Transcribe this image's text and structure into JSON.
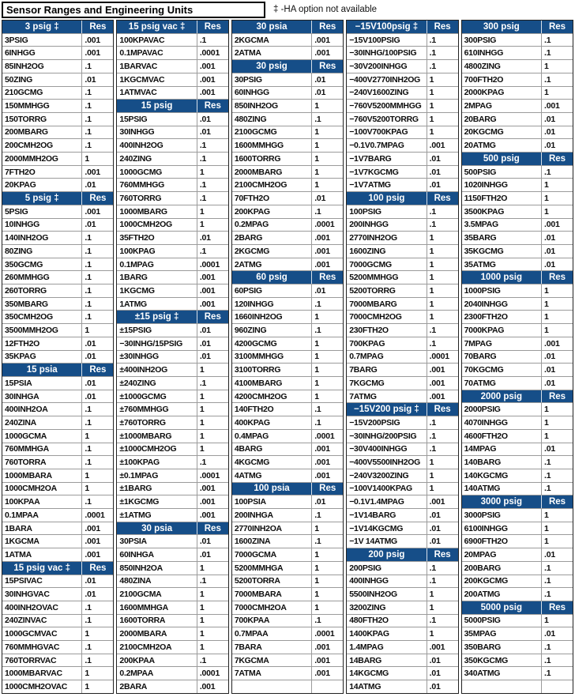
{
  "title": "Sensor Ranges and Engineering Units",
  "note": "‡ -HA option not available",
  "res_header": "Res",
  "colors": {
    "header_bg": "#164e88",
    "header_text": "#ffffff",
    "body_text": "#0d0d0d",
    "grid_line": "#9b9b9b",
    "outer_border": "#222222"
  },
  "columns": [
    {
      "name": "column-1",
      "rows": [
        {
          "h": "3 psig ‡"
        },
        {
          "r": "3PSIG",
          "v": ".001"
        },
        {
          "r": "6INHGG",
          "v": ".001"
        },
        {
          "r": "85INH2OG",
          "v": ".1"
        },
        {
          "r": "50ZING",
          "v": ".01"
        },
        {
          "r": "210GCMG",
          "v": ".1"
        },
        {
          "r": "150MMHGG",
          "v": ".1"
        },
        {
          "r": "150TORRG",
          "v": ".1"
        },
        {
          "r": "200MBARG",
          "v": ".1"
        },
        {
          "r": "200CMH2OG",
          "v": ".1"
        },
        {
          "r": "2000MMH2OG",
          "v": "1"
        },
        {
          "r": "7FTH2O",
          "v": ".001"
        },
        {
          "r": "20KPAG",
          "v": ".01"
        },
        {
          "h": "5 psig ‡"
        },
        {
          "r": "5PSIG",
          "v": ".001"
        },
        {
          "r": "10INHGG",
          "v": ".01"
        },
        {
          "r": "140INH2OG",
          "v": ".1"
        },
        {
          "r": "80ZING",
          "v": ".1"
        },
        {
          "r": "350GCMG",
          "v": ".1"
        },
        {
          "r": "260MMHGG",
          "v": ".1"
        },
        {
          "r": "260TORRG",
          "v": ".1"
        },
        {
          "r": "350MBARG",
          "v": ".1"
        },
        {
          "r": "350CMH2OG",
          "v": ".1"
        },
        {
          "r": "3500MMH2OG",
          "v": "1"
        },
        {
          "r": "12FTH2O",
          "v": ".01"
        },
        {
          "r": "35KPAG",
          "v": ".01"
        },
        {
          "h": "15 psia"
        },
        {
          "r": "15PSIA",
          "v": ".01"
        },
        {
          "r": "30INHGA",
          "v": ".01"
        },
        {
          "r": "400INH2OA",
          "v": ".1"
        },
        {
          "r": "240ZINA",
          "v": ".1"
        },
        {
          "r": "1000GCMA",
          "v": "1"
        },
        {
          "r": "760MMHGA",
          "v": ".1"
        },
        {
          "r": "760TORRA",
          "v": ".1"
        },
        {
          "r": "1000MBARA",
          "v": "1"
        },
        {
          "r": "1000CMH2OA",
          "v": "1"
        },
        {
          "r": "100KPAA",
          "v": ".1"
        },
        {
          "r": "0.1MPAA",
          "v": ".0001"
        },
        {
          "r": "1BARA",
          "v": ".001"
        },
        {
          "r": "1KGCMA",
          "v": ".001"
        },
        {
          "r": "1ATMA",
          "v": ".001"
        },
        {
          "h": "15 psig vac ‡"
        },
        {
          "r": "15PSIVAC",
          "v": ".01"
        },
        {
          "r": "30INHGVAC",
          "v": ".01"
        },
        {
          "r": "400INH2OVAC",
          "v": ".1"
        },
        {
          "r": "240ZINVAC",
          "v": ".1"
        },
        {
          "r": "1000GCMVAC",
          "v": "1"
        },
        {
          "r": "760MMHGVAC",
          "v": ".1"
        },
        {
          "r": "760TORRVAC",
          "v": ".1"
        },
        {
          "r": "1000MBARVAC",
          "v": "1"
        },
        {
          "r": "1000CMH2OVAC",
          "v": "1"
        }
      ]
    },
    {
      "name": "column-2",
      "rows": [
        {
          "h": "15 psig vac ‡"
        },
        {
          "r": "100KPAVAC",
          "v": ".1"
        },
        {
          "r": "0.1MPAVAC",
          "v": ".0001"
        },
        {
          "r": "1BARVAC",
          "v": ".001"
        },
        {
          "r": "1KGCMVAC",
          "v": ".001"
        },
        {
          "r": "1ATMVAC",
          "v": ".001"
        },
        {
          "h": "15 psig"
        },
        {
          "r": "15PSIG",
          "v": ".01"
        },
        {
          "r": "30INHGG",
          "v": ".01"
        },
        {
          "r": "400INH2OG",
          "v": ".1"
        },
        {
          "r": "240ZING",
          "v": ".1"
        },
        {
          "r": "1000GCMG",
          "v": "1"
        },
        {
          "r": "760MMHGG",
          "v": ".1"
        },
        {
          "r": "760TORRG",
          "v": ".1"
        },
        {
          "r": "1000MBARG",
          "v": "1"
        },
        {
          "r": "1000CMH2OG",
          "v": "1"
        },
        {
          "r": "35FTH2O",
          "v": ".01"
        },
        {
          "r": "100KPAG",
          "v": ".1"
        },
        {
          "r": "0.1MPAG",
          "v": ".0001"
        },
        {
          "r": "1BARG",
          "v": ".001"
        },
        {
          "r": "1KGCMG",
          "v": ".001"
        },
        {
          "r": "1ATMG",
          "v": ".001"
        },
        {
          "h": "±15 psig ‡"
        },
        {
          "r": "±15PSIG",
          "v": ".01"
        },
        {
          "r": "−30INHG/15PSIG",
          "v": ".01"
        },
        {
          "r": "±30INHGG",
          "v": ".01"
        },
        {
          "r": "±400INH2OG",
          "v": "1"
        },
        {
          "r": "±240ZING",
          "v": ".1"
        },
        {
          "r": "±1000GCMG",
          "v": "1"
        },
        {
          "r": "±760MMHGG",
          "v": "1"
        },
        {
          "r": "±760TORRG",
          "v": "1"
        },
        {
          "r": "±1000MBARG",
          "v": "1"
        },
        {
          "r": "±1000CMH2OG",
          "v": "1"
        },
        {
          "r": "±100KPAG",
          "v": ".1"
        },
        {
          "r": "±0.1MPAG",
          "v": ".0001"
        },
        {
          "r": "±1BARG",
          "v": ".001"
        },
        {
          "r": "±1KGCMG",
          "v": ".001"
        },
        {
          "r": "±1ATMG",
          "v": ".001"
        },
        {
          "h": "30 psia"
        },
        {
          "r": "30PSIA",
          "v": ".01"
        },
        {
          "r": "60INHGA",
          "v": ".01"
        },
        {
          "r": "850INH2OA",
          "v": "1"
        },
        {
          "r": "480ZINA",
          "v": ".1"
        },
        {
          "r": "2100GCMA",
          "v": "1"
        },
        {
          "r": "1600MMHGA",
          "v": "1"
        },
        {
          "r": "1600TORRA",
          "v": "1"
        },
        {
          "r": "2000MBARA",
          "v": "1"
        },
        {
          "r": "2100CMH2OA",
          "v": "1"
        },
        {
          "r": "200KPAA",
          "v": ".1"
        },
        {
          "r": "0.2MPAA",
          "v": ".0001"
        },
        {
          "r": "2BARA",
          "v": ".001"
        }
      ]
    },
    {
      "name": "column-3",
      "rows": [
        {
          "h": "30 psia"
        },
        {
          "r": "2KGCMA",
          "v": ".001"
        },
        {
          "r": "2ATMA",
          "v": ".001"
        },
        {
          "h": "30 psig"
        },
        {
          "r": "30PSIG",
          "v": ".01"
        },
        {
          "r": "60INHGG",
          "v": ".01"
        },
        {
          "r": "850INH2OG",
          "v": "1"
        },
        {
          "r": "480ZING",
          "v": ".1"
        },
        {
          "r": "2100GCMG",
          "v": "1"
        },
        {
          "r": "1600MMHGG",
          "v": "1"
        },
        {
          "r": "1600TORRG",
          "v": "1"
        },
        {
          "r": "2000MBARG",
          "v": "1"
        },
        {
          "r": "2100CMH2OG",
          "v": "1"
        },
        {
          "r": "70FTH2O",
          "v": ".01"
        },
        {
          "r": "200KPAG",
          "v": ".1"
        },
        {
          "r": "0.2MPAG",
          "v": ".0001"
        },
        {
          "r": "2BARG",
          "v": ".001"
        },
        {
          "r": "2KGCMG",
          "v": ".001"
        },
        {
          "r": "2ATMG",
          "v": ".001"
        },
        {
          "h": "60 psig"
        },
        {
          "r": "60PSIG",
          "v": ".01"
        },
        {
          "r": "120INHGG",
          "v": ".1"
        },
        {
          "r": "1660INH2OG",
          "v": "1"
        },
        {
          "r": "960ZING",
          "v": ".1"
        },
        {
          "r": "4200GCMG",
          "v": "1"
        },
        {
          "r": "3100MMHGG",
          "v": "1"
        },
        {
          "r": "3100TORRG",
          "v": "1"
        },
        {
          "r": "4100MBARG",
          "v": "1"
        },
        {
          "r": "4200CMH2OG",
          "v": "1"
        },
        {
          "r": "140FTH2O",
          "v": ".1"
        },
        {
          "r": "400KPAG",
          "v": ".1"
        },
        {
          "r": "0.4MPAG",
          "v": ".0001"
        },
        {
          "r": "4BARG",
          "v": ".001"
        },
        {
          "r": "4KGCMG",
          "v": ".001"
        },
        {
          "r": "4ATMG",
          "v": ".001"
        },
        {
          "h": "100 psia"
        },
        {
          "r": "100PSIA",
          "v": ".01"
        },
        {
          "r": "200INHGA",
          "v": ".1"
        },
        {
          "r": "2770INH2OA",
          "v": "1"
        },
        {
          "r": "1600ZINA",
          "v": ".1"
        },
        {
          "r": "7000GCMA",
          "v": "1"
        },
        {
          "r": "5200MMHGA",
          "v": "1"
        },
        {
          "r": "5200TORRA",
          "v": "1"
        },
        {
          "r": "7000MBARA",
          "v": "1"
        },
        {
          "r": "7000CMH2OA",
          "v": "1"
        },
        {
          "r": "700KPAA",
          "v": ".1"
        },
        {
          "r": "0.7MPAA",
          "v": ".0001"
        },
        {
          "r": "7BARA",
          "v": ".001"
        },
        {
          "r": "7KGCMA",
          "v": ".001"
        },
        {
          "r": "7ATMA",
          "v": ".001"
        },
        {
          "r": "",
          "v": ""
        }
      ]
    },
    {
      "name": "column-4",
      "rows": [
        {
          "h": "−15V100psig ‡"
        },
        {
          "r": "−15V100PSIG",
          "v": ".1"
        },
        {
          "r": "−30INHG/100PSIG",
          "v": ".1"
        },
        {
          "r": "−30V200INHGG",
          "v": ".1"
        },
        {
          "r": "−400V2770INH2OG",
          "v": "1"
        },
        {
          "r": "−240V1600ZING",
          "v": "1"
        },
        {
          "r": "−760V5200MMHGG",
          "v": "1"
        },
        {
          "r": "−760V5200TORRG",
          "v": "1"
        },
        {
          "r": "−100V700KPAG",
          "v": "1"
        },
        {
          "r": "−0.1V0.7MPAG",
          "v": ".001"
        },
        {
          "r": "−1V7BARG",
          "v": ".01"
        },
        {
          "r": "−1V7KGCMG",
          "v": ".01"
        },
        {
          "r": "−1V7ATMG",
          "v": ".01"
        },
        {
          "h": "100 psig"
        },
        {
          "r": "100PSIG",
          "v": ".1"
        },
        {
          "r": "200INHGG",
          "v": ".1"
        },
        {
          "r": "2770INH2OG",
          "v": "1"
        },
        {
          "r": "1600ZING",
          "v": "1"
        },
        {
          "r": "7000GCMG",
          "v": "1"
        },
        {
          "r": "5200MMHGG",
          "v": "1"
        },
        {
          "r": "5200TORRG",
          "v": "1"
        },
        {
          "r": "7000MBARG",
          "v": "1"
        },
        {
          "r": "7000CMH2OG",
          "v": "1"
        },
        {
          "r": "230FTH2O",
          "v": ".1"
        },
        {
          "r": "700KPAG",
          "v": ".1"
        },
        {
          "r": "0.7MPAG",
          "v": ".0001"
        },
        {
          "r": "7BARG",
          "v": ".001"
        },
        {
          "r": "7KGCMG",
          "v": ".001"
        },
        {
          "r": "7ATMG",
          "v": ".001"
        },
        {
          "h": "−15V200 psig ‡"
        },
        {
          "r": "−15V200PSIG",
          "v": ".1"
        },
        {
          "r": "−30INHG/200PSIG",
          "v": ".1"
        },
        {
          "r": "−30V400INHGG",
          "v": ".1"
        },
        {
          "r": "−400V5500INH2OG",
          "v": "1"
        },
        {
          "r": "−240V3200ZING",
          "v": "1"
        },
        {
          "r": "−100V1400KPAG",
          "v": "1"
        },
        {
          "r": "−0.1V1.4MPAG",
          "v": ".001"
        },
        {
          "r": "−1V14BARG",
          "v": ".01"
        },
        {
          "r": "−1V14KGCMG",
          "v": ".01"
        },
        {
          "r": "−1V 14ATMG",
          "v": ".01"
        },
        {
          "h": "200 psig"
        },
        {
          "r": "200PSIG",
          "v": ".1"
        },
        {
          "r": "400INHGG",
          "v": ".1"
        },
        {
          "r": "5500INH2OG",
          "v": "1"
        },
        {
          "r": "3200ZING",
          "v": "1"
        },
        {
          "r": "480FTH2O",
          "v": ".1"
        },
        {
          "r": "1400KPAG",
          "v": "1"
        },
        {
          "r": "1.4MPAG",
          "v": ".001"
        },
        {
          "r": "14BARG",
          "v": ".01"
        },
        {
          "r": "14KGCMG",
          "v": ".01"
        },
        {
          "r": "14ATMG",
          "v": ".01"
        }
      ]
    },
    {
      "name": "column-5",
      "rows": [
        {
          "h": "300 psig"
        },
        {
          "r": "300PSIG",
          "v": ".1"
        },
        {
          "r": "610INHGG",
          "v": ".1"
        },
        {
          "r": "4800ZING",
          "v": "1"
        },
        {
          "r": "700FTH2O",
          "v": ".1"
        },
        {
          "r": "2000KPAG",
          "v": "1"
        },
        {
          "r": "2MPAG",
          "v": ".001"
        },
        {
          "r": "20BARG",
          "v": ".01"
        },
        {
          "r": "20KGCMG",
          "v": ".01"
        },
        {
          "r": "20ATMG",
          "v": ".01"
        },
        {
          "h": "500 psig"
        },
        {
          "r": "500PSIG",
          "v": ".1"
        },
        {
          "r": "1020INHGG",
          "v": "1"
        },
        {
          "r": "1150FTH2O",
          "v": "1"
        },
        {
          "r": "3500KPAG",
          "v": "1"
        },
        {
          "r": "3.5MPAG",
          "v": ".001"
        },
        {
          "r": "35BARG",
          "v": ".01"
        },
        {
          "r": "35KGCMG",
          "v": ".01"
        },
        {
          "r": "35ATMG",
          "v": ".01"
        },
        {
          "h": "1000 psig"
        },
        {
          "r": "1000PSIG",
          "v": "1"
        },
        {
          "r": "2040INHGG",
          "v": "1"
        },
        {
          "r": "2300FTH2O",
          "v": "1"
        },
        {
          "r": "7000KPAG",
          "v": "1"
        },
        {
          "r": "7MPAG",
          "v": ".001"
        },
        {
          "r": "70BARG",
          "v": ".01"
        },
        {
          "r": "70KGCMG",
          "v": ".01"
        },
        {
          "r": "70ATMG",
          "v": ".01"
        },
        {
          "h": "2000 psig"
        },
        {
          "r": "2000PSIG",
          "v": "1"
        },
        {
          "r": "4070INHGG",
          "v": "1"
        },
        {
          "r": "4600FTH2O",
          "v": "1"
        },
        {
          "r": "14MPAG",
          "v": ".01"
        },
        {
          "r": "140BARG",
          "v": ".1"
        },
        {
          "r": "140KGCMG",
          "v": ".1"
        },
        {
          "r": "140ATMG",
          "v": ".1"
        },
        {
          "h": "3000 psig"
        },
        {
          "r": "3000PSIG",
          "v": "1"
        },
        {
          "r": "6100INHGG",
          "v": "1"
        },
        {
          "r": "6900FTH2O",
          "v": "1"
        },
        {
          "r": "20MPAG",
          "v": ".01"
        },
        {
          "r": "200BARG",
          "v": ".1"
        },
        {
          "r": "200KGCMG",
          "v": ".1"
        },
        {
          "r": "200ATMG",
          "v": ".1"
        },
        {
          "h": "5000 psig"
        },
        {
          "r": "5000PSIG",
          "v": "1"
        },
        {
          "r": "35MPAG",
          "v": ".01"
        },
        {
          "r": "350BARG",
          "v": ".1"
        },
        {
          "r": "350KGCMG",
          "v": ".1"
        },
        {
          "r": "340ATMG",
          "v": ".1"
        },
        {
          "r": "",
          "v": ""
        }
      ]
    }
  ]
}
